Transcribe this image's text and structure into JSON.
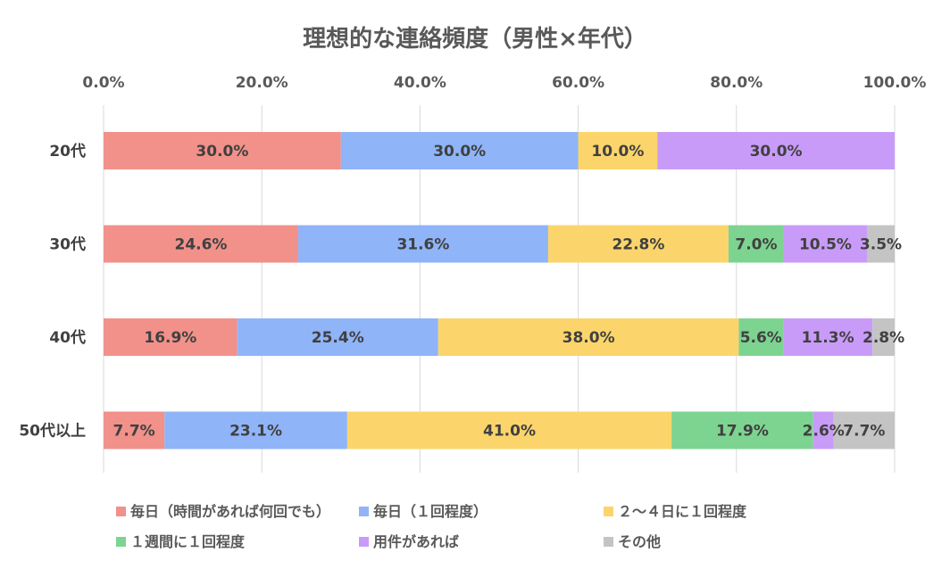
{
  "chart_data": {
    "type": "bar",
    "orientation": "horizontal",
    "stacked": true,
    "title": "理想的な連絡頻度（男性×年代）",
    "xlim": [
      0,
      100
    ],
    "xticks": [
      "0.0%",
      "20.0%",
      "40.0%",
      "60.0%",
      "80.0%",
      "100.0%"
    ],
    "xaxis_position": "top",
    "grid": "vertical",
    "legend_position": "bottom",
    "categories": [
      "20代",
      "30代",
      "40代",
      "50代以上"
    ],
    "series": [
      {
        "name": "毎日（時間があれば何回でも）",
        "color": "#f1918a",
        "values": [
          30.0,
          24.6,
          16.9,
          7.7
        ],
        "labels": [
          "30.0%",
          "24.6%",
          "16.9%",
          "7.7%"
        ]
      },
      {
        "name": "毎日（１回程度）",
        "color": "#8fb4f8",
        "values": [
          30.0,
          31.6,
          25.4,
          23.1
        ],
        "labels": [
          "30.0%",
          "31.6%",
          "25.4%",
          "23.1%"
        ]
      },
      {
        "name": "２～４日に１回程度",
        "color": "#fbd56b",
        "values": [
          10.0,
          22.8,
          38.0,
          41.0
        ],
        "labels": [
          "10.0%",
          "22.8%",
          "38.0%",
          "41.0%"
        ]
      },
      {
        "name": "１週間に１回程度",
        "color": "#7dd490",
        "values": [
          0.0,
          7.0,
          5.6,
          17.9
        ],
        "labels": [
          "",
          "7.0%",
          "5.6%",
          "17.9%"
        ]
      },
      {
        "name": "用件があれば",
        "color": "#c99bf8",
        "values": [
          30.0,
          10.5,
          11.3,
          2.6
        ],
        "labels": [
          "30.0%",
          "10.5%",
          "11.3%",
          "2.6%"
        ]
      },
      {
        "name": "その他",
        "color": "#c4c4c4",
        "values": [
          0.0,
          3.5,
          2.8,
          7.7
        ],
        "labels": [
          "",
          "3.5%",
          "2.8%",
          "7.7%"
        ]
      }
    ]
  }
}
